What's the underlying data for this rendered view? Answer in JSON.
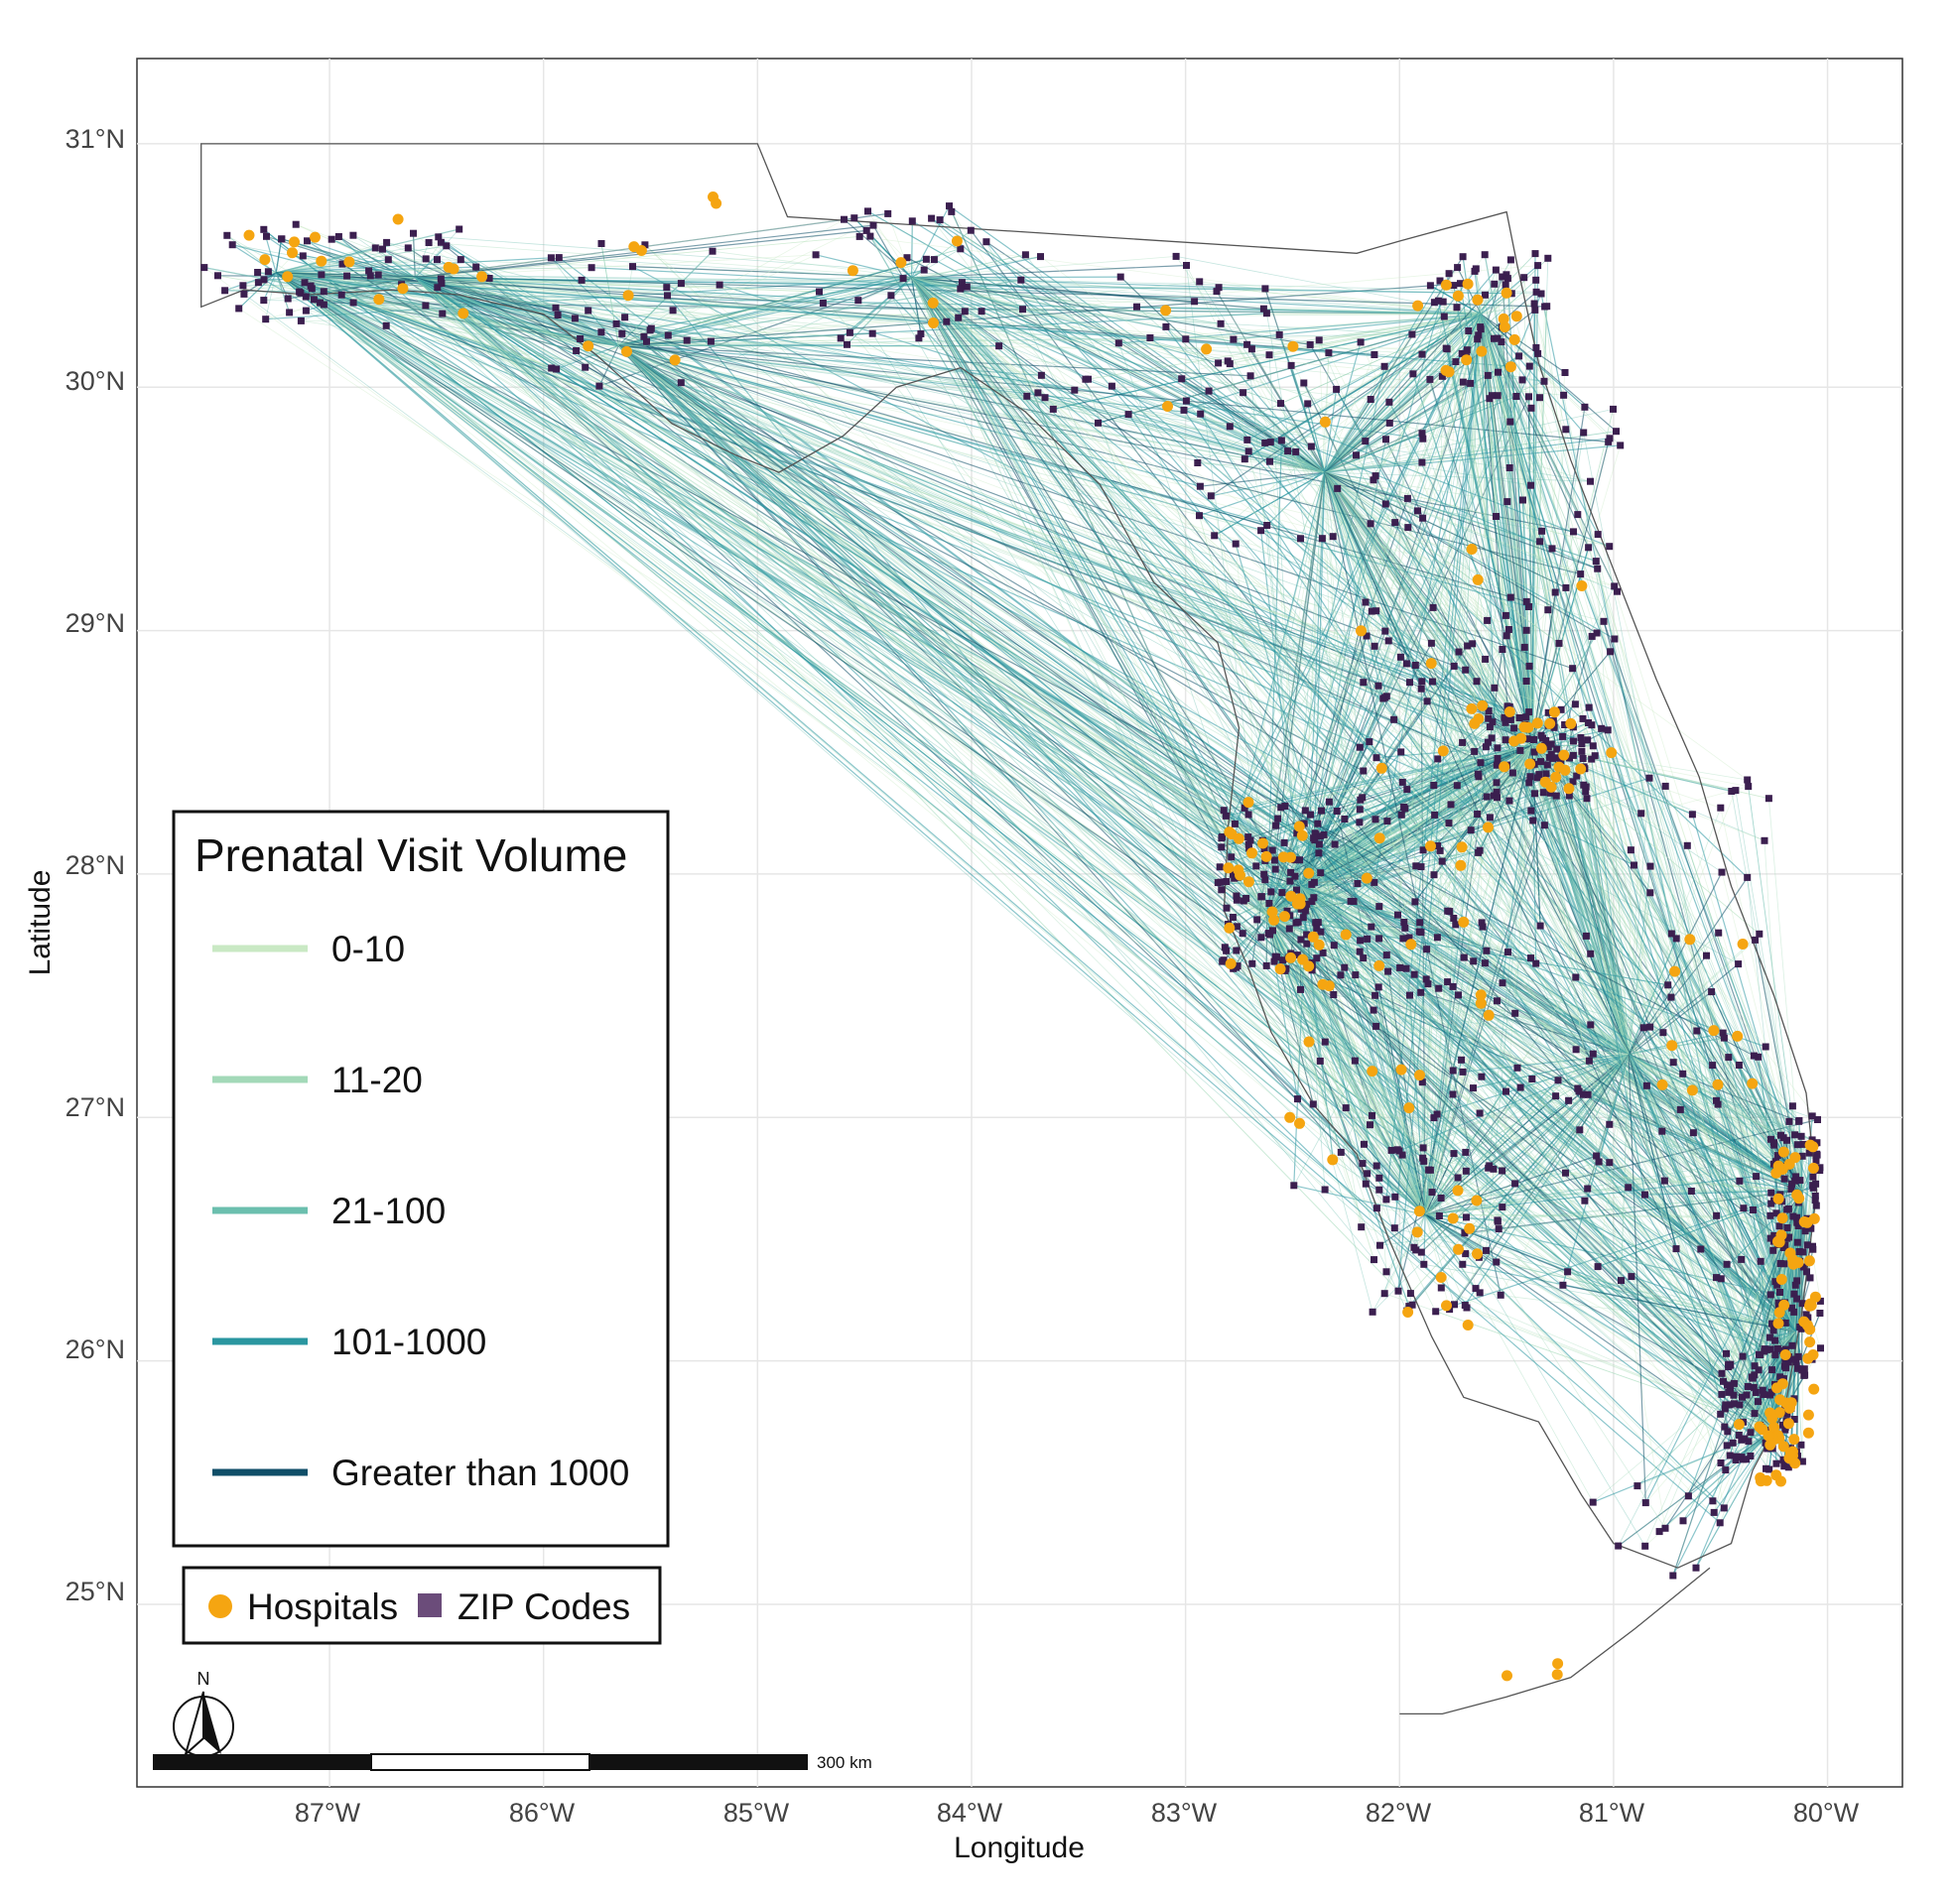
{
  "axes": {
    "x_title": "Longitude",
    "y_title": "Latitude",
    "x_ticks": [
      "87°W",
      "86°W",
      "85°W",
      "84°W",
      "83°W",
      "82°W",
      "81°W",
      "80°W"
    ],
    "y_ticks": [
      "31°N",
      "30°N",
      "29°N",
      "28°N",
      "27°N",
      "26°N",
      "25°N"
    ]
  },
  "legend": {
    "title": "Prenatal Visit Volume",
    "items": [
      {
        "label": "0-10",
        "color": "#c9e9c4"
      },
      {
        "label": "11-20",
        "color": "#a3d9b8"
      },
      {
        "label": "21-100",
        "color": "#6bbfae"
      },
      {
        "label": "101-1000",
        "color": "#2a96a0"
      },
      {
        "label": "Greater than 1000",
        "color": "#0f4e68"
      }
    ]
  },
  "point_legend": {
    "hospitals_label": "Hospitals",
    "hospitals_color": "#f5a511",
    "zip_label": "ZIP Codes",
    "zip_color": "#6b4c7a"
  },
  "scale_bar": {
    "label": "300 km"
  },
  "north_arrow": {
    "label": "N"
  },
  "colors": {
    "zip_marker": "#3b1f4f",
    "hospital_marker": "#f5a511",
    "state_outline": "#555555",
    "grid": "#e6e6e6"
  },
  "chart_data": {
    "type": "map",
    "projection": "longitude/latitude",
    "xlim": [
      -87.9,
      -79.65
    ],
    "ylim": [
      24.25,
      31.35
    ],
    "hubs": [
      {
        "lon": -87.25,
        "lat": 30.47
      },
      {
        "lon": -86.6,
        "lat": 30.45
      },
      {
        "lon": -85.65,
        "lat": 30.17
      },
      {
        "lon": -84.28,
        "lat": 30.45
      },
      {
        "lon": -82.35,
        "lat": 29.65
      },
      {
        "lon": -81.62,
        "lat": 30.3
      },
      {
        "lon": -81.38,
        "lat": 28.53
      },
      {
        "lon": -82.46,
        "lat": 27.95
      },
      {
        "lon": -82.62,
        "lat": 27.83
      },
      {
        "lon": -80.93,
        "lat": 27.26
      },
      {
        "lon": -81.88,
        "lat": 26.6
      },
      {
        "lon": -80.12,
        "lat": 26.7
      },
      {
        "lon": -80.15,
        "lat": 26.12
      },
      {
        "lon": -80.25,
        "lat": 25.72
      }
    ]
  }
}
